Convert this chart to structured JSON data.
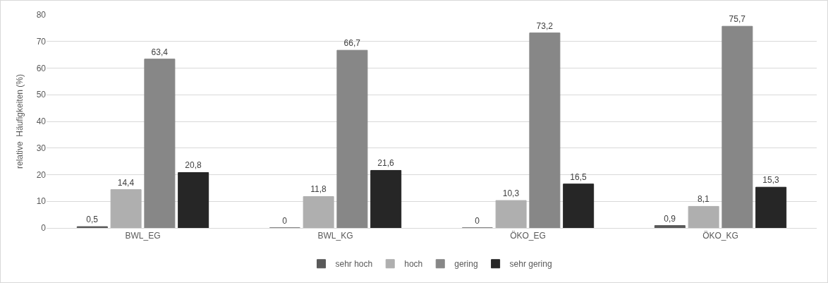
{
  "chart_data": {
    "type": "bar",
    "ylabel": "relative  Häufigkeiten (%)",
    "categories": [
      "BWL_EG",
      "BWL_KG",
      "ÖKO_EG",
      "ÖKO_KG"
    ],
    "series": [
      {
        "name": "sehr hoch",
        "color": "#595959",
        "values": [
          0.5,
          0,
          0,
          0.9
        ],
        "value_labels": [
          "0,5",
          "0",
          "0",
          "0,9"
        ]
      },
      {
        "name": "hoch",
        "color": "#afafaf",
        "values": [
          14.4,
          11.8,
          10.3,
          8.1
        ],
        "value_labels": [
          "14,4",
          "11,8",
          "10,3",
          "8,1"
        ]
      },
      {
        "name": "gering",
        "color": "#878787",
        "values": [
          63.4,
          66.7,
          73.2,
          75.7
        ],
        "value_labels": [
          "63,4",
          "66,7",
          "73,2",
          "75,7"
        ]
      },
      {
        "name": "sehr gering",
        "color": "#262626",
        "values": [
          20.8,
          21.6,
          16.5,
          15.3
        ],
        "value_labels": [
          "20,8",
          "21,6",
          "16,5",
          "15,3"
        ]
      }
    ],
    "ylim": [
      0,
      80
    ],
    "yticks": [
      0,
      10,
      20,
      30,
      40,
      50,
      60,
      70,
      80
    ],
    "grid": "y",
    "legend": "bottom"
  }
}
